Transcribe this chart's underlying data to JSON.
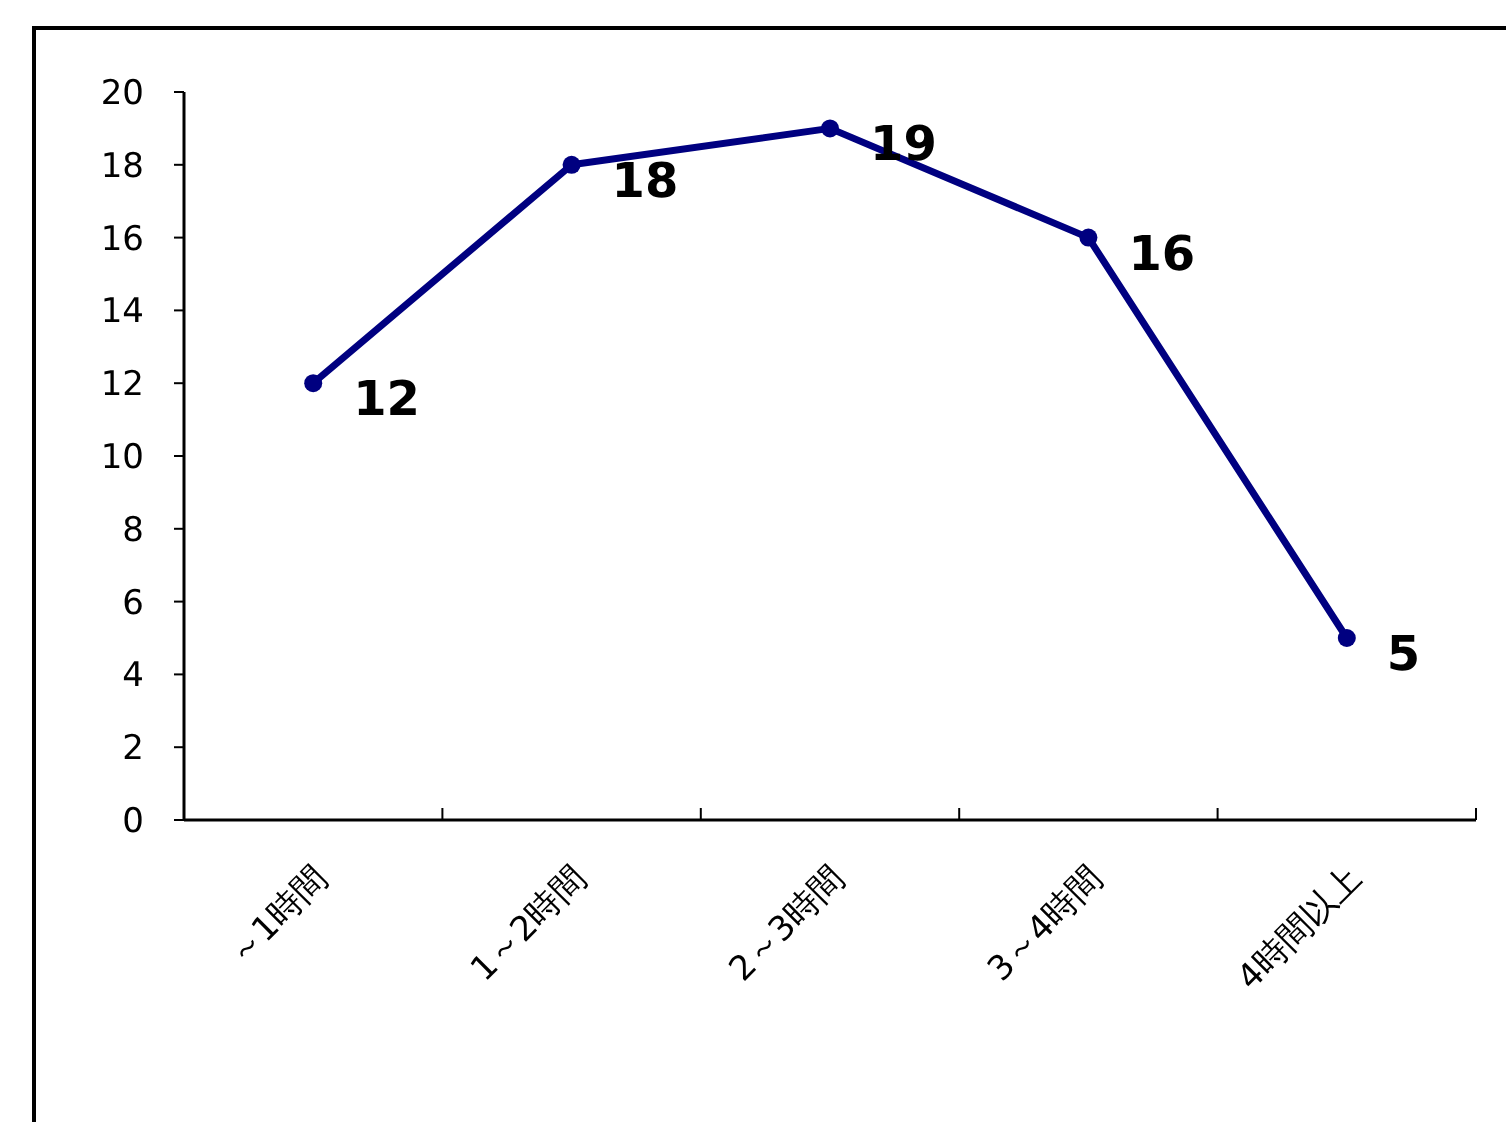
{
  "chart_data": {
    "type": "line",
    "categories": [
      "～1時間",
      "1～2時間",
      "2～3時間",
      "3～4時間",
      "4時間以上"
    ],
    "series": [
      {
        "color": "#000080",
        "values": [
          12,
          18,
          19,
          16,
          5
        ]
      }
    ],
    "ylim": [
      0,
      20
    ],
    "yticks": [
      0,
      2,
      4,
      6,
      8,
      10,
      12,
      14,
      16,
      18,
      20
    ],
    "grid": false,
    "marker": "circle",
    "line_style": "solid",
    "data_labels": true
  }
}
